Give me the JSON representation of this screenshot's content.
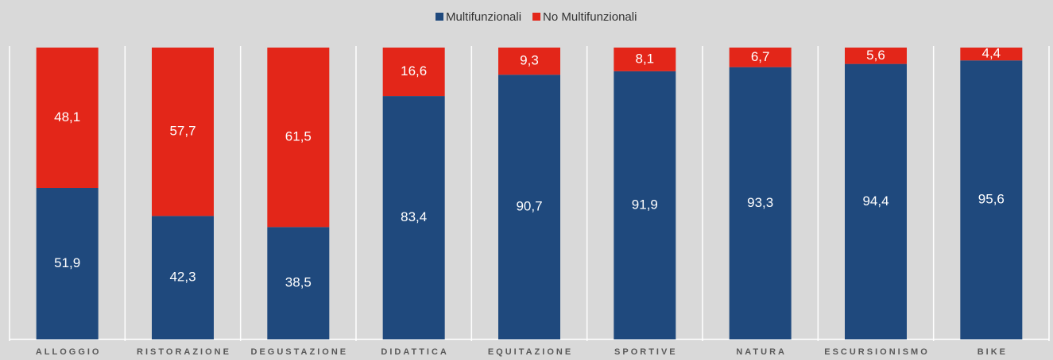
{
  "chart_data": {
    "type": "stacked_bar",
    "categories": [
      "ALLOGGIO",
      "RISTORAZIONE",
      "DEGUSTAZIONE",
      "DIDATTICA",
      "EQUITAZIONE",
      "SPORTIVE",
      "NATURA",
      "ESCURSIONISMO",
      "BIKE"
    ],
    "series": [
      {
        "name": "Multifunzionali",
        "color": "#1f497d",
        "values": [
          51.9,
          42.3,
          38.5,
          83.4,
          90.7,
          91.9,
          93.3,
          94.4,
          95.6
        ],
        "value_labels": [
          "51,9",
          "42,3",
          "38,5",
          "83,4",
          "90,7",
          "91,9",
          "93,3",
          "94,4",
          "95,6"
        ]
      },
      {
        "name": "No Multifunzionali",
        "color": "#e32619",
        "values": [
          48.1,
          57.7,
          61.5,
          16.6,
          9.3,
          8.1,
          6.7,
          5.6,
          4.4
        ],
        "value_labels": [
          "48,1",
          "57,7",
          "61,5",
          "16,6",
          "9,3",
          "8,1",
          "6,7",
          "5,6",
          "4,4"
        ]
      }
    ],
    "ylim": [
      0,
      100
    ],
    "legend": "top"
  }
}
